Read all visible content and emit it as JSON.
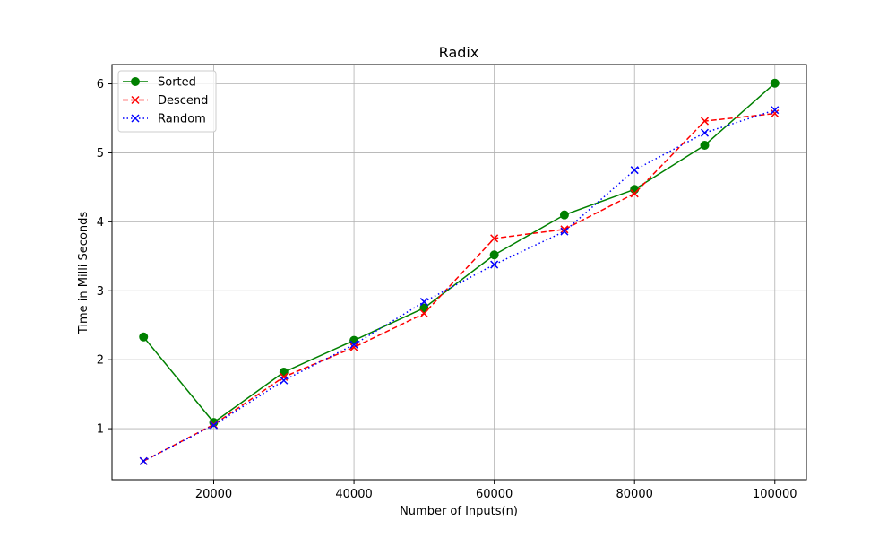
{
  "chart_data": {
    "type": "line",
    "title": "Radix",
    "xlabel": "Number of Inputs(n)",
    "ylabel": "Time in Milli Seconds",
    "x": [
      10000,
      20000,
      30000,
      40000,
      50000,
      60000,
      70000,
      80000,
      90000,
      100000
    ],
    "xlim": [
      5500,
      104500
    ],
    "ylim": [
      0.26,
      6.28
    ],
    "xticks": [
      20000,
      40000,
      60000,
      80000,
      100000
    ],
    "yticks": [
      1,
      2,
      3,
      4,
      5,
      6
    ],
    "grid": true,
    "legend_position": "top-left",
    "series": [
      {
        "name": "Sorted",
        "values": [
          2.33,
          1.09,
          1.82,
          2.28,
          2.75,
          3.52,
          4.1,
          4.47,
          5.11,
          6.01
        ],
        "color": "#008000",
        "line_style": "solid",
        "marker": "circle"
      },
      {
        "name": "Descend",
        "values": [
          0.53,
          1.06,
          1.75,
          2.18,
          2.67,
          3.76,
          3.89,
          4.41,
          5.46,
          5.57
        ],
        "color": "#ff0000",
        "line_style": "dashed",
        "marker": "x"
      },
      {
        "name": "Random",
        "values": [
          0.53,
          1.05,
          1.7,
          2.22,
          2.84,
          3.38,
          3.86,
          4.75,
          5.29,
          5.62
        ],
        "color": "#0000ff",
        "line_style": "dotted",
        "marker": "x"
      }
    ]
  }
}
